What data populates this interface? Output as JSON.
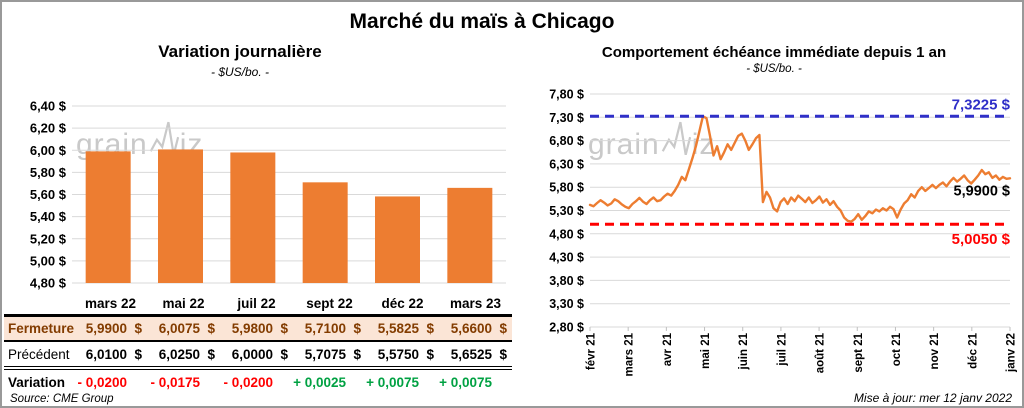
{
  "page": {
    "title": "Marché du maïs à Chicago",
    "watermark_left": "grain",
    "watermark_right": "iz",
    "source_note": "Source: CME Group",
    "update_note": "Mise à jour: mer 12 janv 2022"
  },
  "colors": {
    "orange": "#ED7D31",
    "grid": "#D9D9D9",
    "tick": "#BFBFBF",
    "high_blue": "#2F2FC8",
    "low_red": "#FF0000",
    "neg_red": "#FF0000",
    "pos_green": "#00A142",
    "fermeture_text": "#833C00",
    "fermeture_bg": "#FBE5D6"
  },
  "chart_data": [
    {
      "type": "bar",
      "title": "Variation journalière",
      "subtitle": "- $US/bo. -",
      "categories": [
        "mars 22",
        "mai 22",
        "juil 22",
        "sept 22",
        "déc 22",
        "mars 23"
      ],
      "values": [
        5.99,
        6.0075,
        5.98,
        5.71,
        5.5825,
        5.66
      ],
      "ylim": [
        4.8,
        6.4
      ],
      "yticks": [
        4.8,
        5.0,
        5.2,
        5.4,
        5.6,
        5.8,
        6.0,
        6.2,
        6.4
      ],
      "ytick_labels": [
        "4,80 $",
        "5,00 $",
        "5,20 $",
        "5,40 $",
        "5,60 $",
        "5,80 $",
        "6,00 $",
        "6,20 $",
        "6,40 $"
      ],
      "bar_color": "#ED7D31",
      "grid": true,
      "legend": "none"
    },
    {
      "type": "line",
      "title": "Comportement échéance immédiate depuis 1 an",
      "subtitle": "- $US/bo. -",
      "x_labels": [
        "févr 21",
        "mars 21",
        "avr 21",
        "mai 21",
        "juin 21",
        "juil 21",
        "août 21",
        "sept 21",
        "oct 21",
        "nov 21",
        "déc 21",
        "janv 22"
      ],
      "ylim": [
        2.8,
        7.8
      ],
      "yticks": [
        2.8,
        3.3,
        3.8,
        4.3,
        4.8,
        5.3,
        5.8,
        6.3,
        6.8,
        7.3,
        7.8
      ],
      "ytick_labels": [
        "2,80 $",
        "3,30 $",
        "3,80 $",
        "4,30 $",
        "4,80 $",
        "5,30 $",
        "5,80 $",
        "6,30 $",
        "6,80 $",
        "7,30 $",
        "7,80 $"
      ],
      "line_color": "#ED7D31",
      "grid": true,
      "legend": "none",
      "annotations": {
        "high": {
          "value": 7.3225,
          "label": "7,3225 $",
          "color": "#2F2FC8",
          "style": "dashed"
        },
        "low": {
          "value": 5.005,
          "label": "5,0050 $",
          "color": "#FF0000",
          "style": "dashed"
        },
        "last": {
          "value": 5.99,
          "label": "5,9900 $",
          "color": "#000000"
        }
      },
      "values": [
        5.42,
        5.39,
        5.46,
        5.52,
        5.47,
        5.41,
        5.45,
        5.54,
        5.5,
        5.43,
        5.38,
        5.35,
        5.44,
        5.5,
        5.57,
        5.49,
        5.44,
        5.52,
        5.58,
        5.5,
        5.52,
        5.6,
        5.66,
        5.62,
        5.72,
        5.85,
        6.02,
        5.95,
        6.18,
        6.42,
        6.68,
        7.0,
        7.3225,
        7.28,
        6.9,
        6.48,
        6.68,
        6.4,
        6.55,
        6.72,
        6.6,
        6.75,
        6.9,
        6.95,
        6.8,
        6.6,
        6.72,
        6.85,
        6.92,
        5.48,
        5.7,
        5.58,
        5.35,
        5.28,
        5.48,
        5.56,
        5.44,
        5.58,
        5.5,
        5.62,
        5.55,
        5.48,
        5.58,
        5.46,
        5.52,
        5.6,
        5.47,
        5.54,
        5.42,
        5.5,
        5.38,
        5.3,
        5.15,
        5.08,
        5.06,
        5.12,
        5.22,
        5.1,
        5.18,
        5.28,
        5.24,
        5.32,
        5.28,
        5.35,
        5.3,
        5.38,
        5.33,
        5.15,
        5.32,
        5.45,
        5.52,
        5.65,
        5.58,
        5.72,
        5.8,
        5.72,
        5.78,
        5.85,
        5.78,
        5.85,
        5.9,
        5.82,
        5.92,
        6.0,
        5.92,
        5.98,
        6.05,
        5.95,
        5.88,
        5.96,
        6.05,
        6.17,
        6.08,
        6.12,
        6.0,
        6.05,
        5.96,
        6.02,
        5.98,
        5.99
      ]
    }
  ],
  "table": {
    "currency": "$",
    "columns": [
      "mars 22",
      "mai 22",
      "juil 22",
      "sept 22",
      "déc 22",
      "mars 23"
    ],
    "rows": [
      {
        "key": "fermeture",
        "label": "Fermeture",
        "values": [
          "5,9900",
          "6,0075",
          "5,9800",
          "5,7100",
          "5,5825",
          "5,6600"
        ],
        "currency": true
      },
      {
        "key": "precedent",
        "label": "Précédent",
        "values": [
          "6,0100",
          "6,0250",
          "6,0000",
          "5,7075",
          "5,5750",
          "5,6525"
        ],
        "currency": true
      },
      {
        "key": "variation",
        "label": "Variation",
        "values": [
          "- 0,0200",
          "- 0,0175",
          "- 0,0200",
          "+ 0,0025",
          "+ 0,0075",
          "+ 0,0075"
        ],
        "signs": [
          "neg",
          "neg",
          "neg",
          "pos",
          "pos",
          "pos"
        ],
        "currency": false
      }
    ]
  }
}
